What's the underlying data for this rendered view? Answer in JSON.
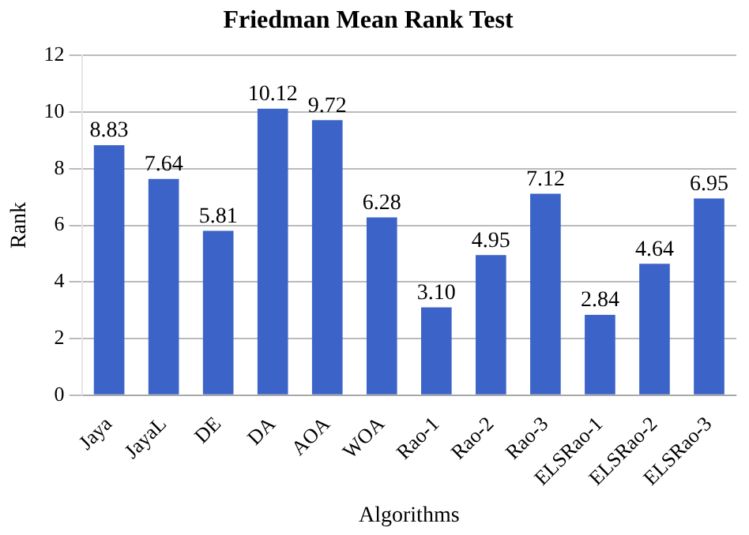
{
  "chart_data": {
    "type": "bar",
    "title": "Friedman Mean Rank Test",
    "xlabel": "Algorithms",
    "ylabel": "Rank",
    "categories": [
      "Jaya",
      "JayaL",
      "DE",
      "DA",
      "AOA",
      "WOA",
      "Rao-1",
      "Rao-2",
      "Rao-3",
      "ELSRao-1",
      "ELSRao-2",
      "ELSRao-3"
    ],
    "values": [
      8.83,
      7.64,
      5.81,
      10.12,
      9.72,
      6.28,
      3.1,
      4.95,
      7.12,
      2.84,
      4.64,
      6.95
    ],
    "value_labels": [
      "8.83",
      "7.64",
      "5.81",
      "10.12",
      "9.72",
      "6.28",
      "3.10",
      "4.95",
      "7.12",
      "2.84",
      "4.64",
      "6.95"
    ],
    "color": "#3c64c8",
    "ylim": [
      0,
      12
    ],
    "yticks": [
      0,
      2,
      4,
      6,
      8,
      10,
      12
    ],
    "grid": "y",
    "legend": false
  }
}
